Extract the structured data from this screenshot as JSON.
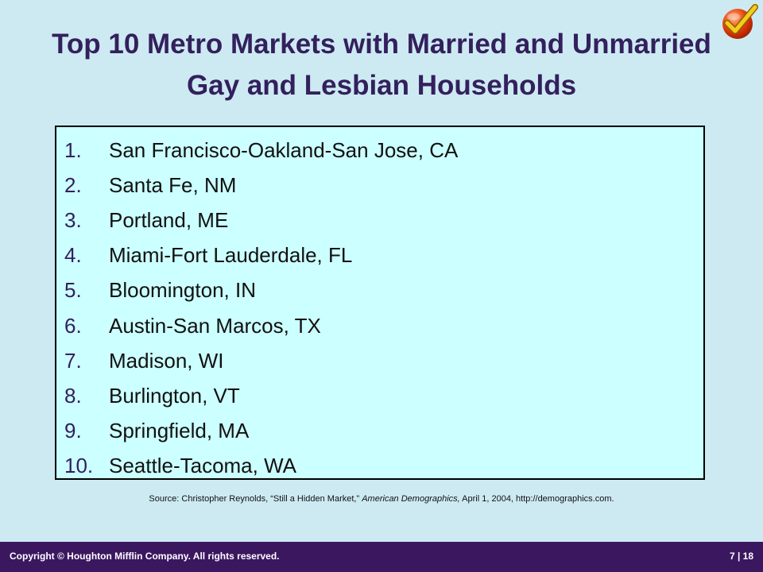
{
  "slide": {
    "title": "Top 10 Metro Markets with Married and Unmarried Gay and Lesbian Households"
  },
  "list": {
    "items": [
      {
        "num": "1.",
        "text": "San Francisco-Oakland-San Jose, CA"
      },
      {
        "num": "2.",
        "text": "Santa Fe, NM"
      },
      {
        "num": "3.",
        "text": "Portland, ME"
      },
      {
        "num": "4.",
        "text": "Miami-Fort Lauderdale, FL"
      },
      {
        "num": "5.",
        "text": "Bloomington, IN"
      },
      {
        "num": "6.",
        "text": "Austin-San Marcos, TX"
      },
      {
        "num": "7.",
        "text": "Madison, WI"
      },
      {
        "num": "8.",
        "text": "Burlington, VT"
      },
      {
        "num": "9.",
        "text": "Springfield, MA"
      },
      {
        "num": "10.",
        "text": "Seattle-Tacoma, WA"
      }
    ]
  },
  "source": {
    "prefix": "Source: Christopher Reynolds, “Still a Hidden Market,”",
    "publication": "American Demographics,",
    "suffix": "April 1, 2004, http://demographics.com."
  },
  "footer": {
    "copyright": "Copyright © Houghton Mifflin Company. All rights reserved.",
    "page": "7 | 18"
  },
  "icons": {
    "corner": "checkmark-icon"
  },
  "colors": {
    "background": "#cdeaf3",
    "title": "#33205c",
    "box": "#ccffff",
    "footer": "#3b1760"
  }
}
